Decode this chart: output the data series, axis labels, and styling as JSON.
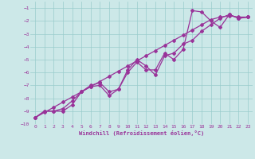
{
  "xlabel": "Windchill (Refroidissement éolien,°C)",
  "bg_color": "#cce8e8",
  "line_color": "#993399",
  "grid_color": "#99cccc",
  "xlim": [
    -0.5,
    23.5
  ],
  "ylim": [
    -10.0,
    -0.5
  ],
  "xticks": [
    0,
    1,
    2,
    3,
    4,
    5,
    6,
    7,
    8,
    9,
    10,
    11,
    12,
    13,
    14,
    15,
    16,
    17,
    18,
    19,
    20,
    21,
    22,
    23
  ],
  "yticks": [
    -1,
    -2,
    -3,
    -4,
    -5,
    -6,
    -7,
    -8,
    -9,
    -10
  ],
  "line1_x": [
    0,
    1,
    2,
    3,
    4,
    5,
    6,
    7,
    8,
    9,
    10,
    11,
    12,
    13,
    14,
    15,
    16,
    17,
    18,
    19,
    20,
    21,
    22,
    23
  ],
  "line1_y": [
    -9.5,
    -9.0,
    -9.0,
    -9.0,
    -8.5,
    -7.5,
    -7.1,
    -7.0,
    -7.8,
    -7.3,
    -6.0,
    -5.2,
    -5.8,
    -5.8,
    -4.5,
    -5.0,
    -4.2,
    -1.2,
    -1.3,
    -2.0,
    -2.5,
    -1.5,
    -1.8,
    -1.7
  ],
  "line2_x": [
    0,
    1,
    2,
    3,
    4,
    5,
    6,
    7,
    8,
    9,
    10,
    11,
    12,
    13,
    14,
    15,
    16,
    17,
    18,
    19,
    20,
    21,
    22,
    23
  ],
  "line2_y": [
    -9.5,
    -9.0,
    -9.0,
    -8.8,
    -8.2,
    -7.5,
    -7.0,
    -6.8,
    -7.5,
    -7.3,
    -5.8,
    -5.0,
    -5.5,
    -6.2,
    -4.7,
    -4.5,
    -3.8,
    -3.5,
    -2.8,
    -2.3,
    -1.8,
    -1.5,
    -1.8,
    -1.7
  ],
  "line3_x": [
    0,
    1,
    2,
    3,
    4,
    5,
    6,
    7,
    8,
    9,
    10,
    11,
    12,
    13,
    14,
    15,
    16,
    17,
    18,
    19,
    20,
    21,
    22,
    23
  ],
  "line3_y": [
    -9.5,
    -9.1,
    -8.7,
    -8.3,
    -7.9,
    -7.5,
    -7.1,
    -6.7,
    -6.3,
    -5.9,
    -5.5,
    -5.1,
    -4.7,
    -4.3,
    -3.9,
    -3.5,
    -3.1,
    -2.7,
    -2.3,
    -1.9,
    -1.7,
    -1.6,
    -1.7,
    -1.7
  ]
}
